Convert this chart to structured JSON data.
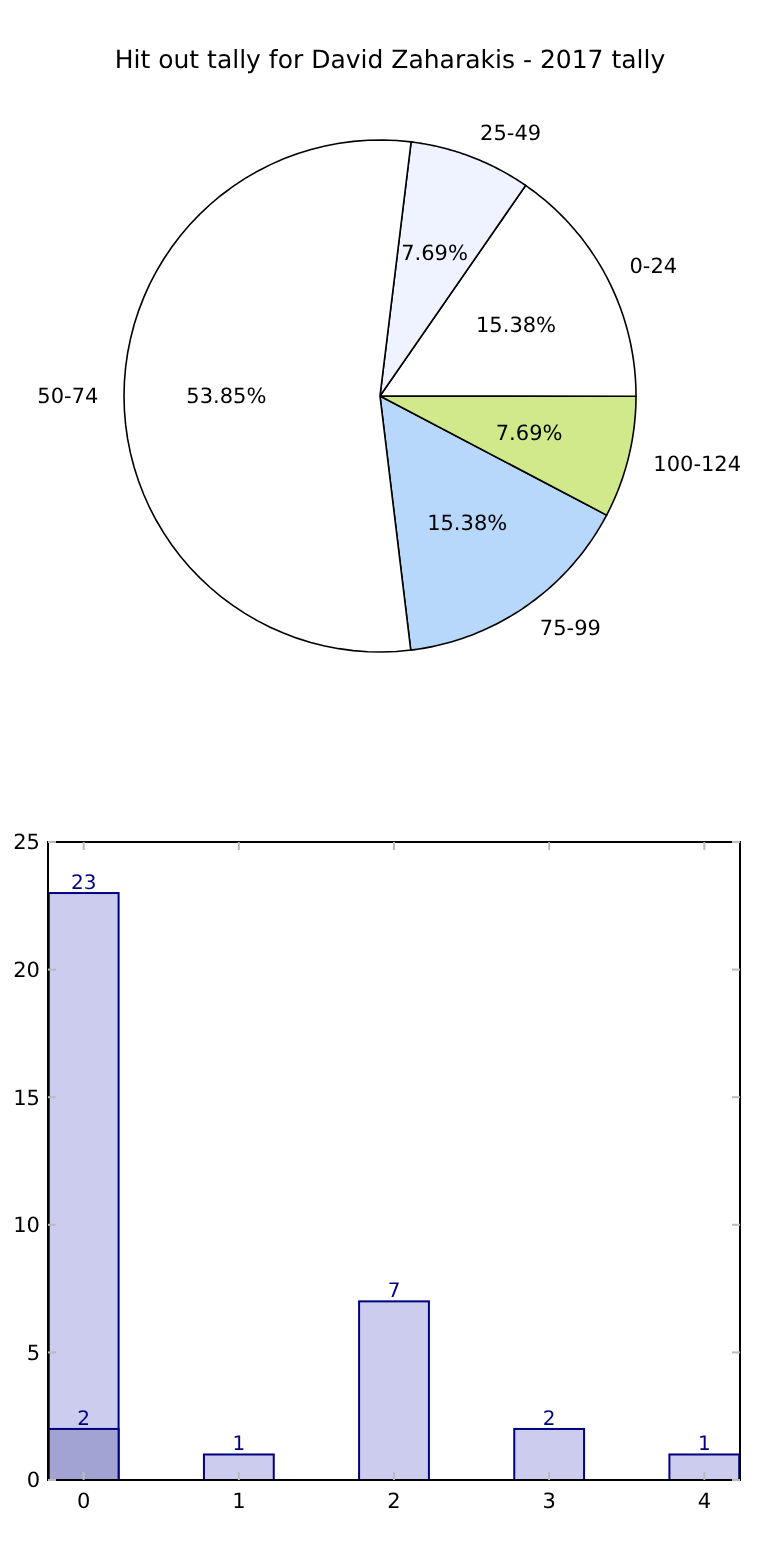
{
  "chart_data": [
    {
      "type": "pie",
      "title": "Hit out tally for David Zaharakis - 2017 tally",
      "categories": [
        "75-99",
        "100-124",
        "0-24",
        "25-49",
        "50-74"
      ],
      "values": [
        15.38,
        7.69,
        15.38,
        7.69,
        53.85
      ],
      "colors": [
        "#b8d8fb",
        "#d0e98a",
        "#ffffff",
        "#eef3ff",
        "#ffffff"
      ],
      "value_labels": [
        "15.38%",
        "7.69%",
        "15.38%",
        "7.69%",
        "53.85%"
      ]
    },
    {
      "type": "bar",
      "categories": [
        "0",
        "1",
        "2",
        "3",
        "4"
      ],
      "series": [
        {
          "color": "#ccccee",
          "values": [
            23,
            1,
            7,
            2,
            1
          ]
        },
        {
          "color": "#a3a3d3",
          "values": [
            2,
            null,
            null,
            null,
            null
          ]
        }
      ],
      "ylim": [
        0,
        25
      ],
      "yticks": [
        0,
        5,
        10,
        15,
        20,
        25
      ],
      "data_labels": true
    }
  ]
}
